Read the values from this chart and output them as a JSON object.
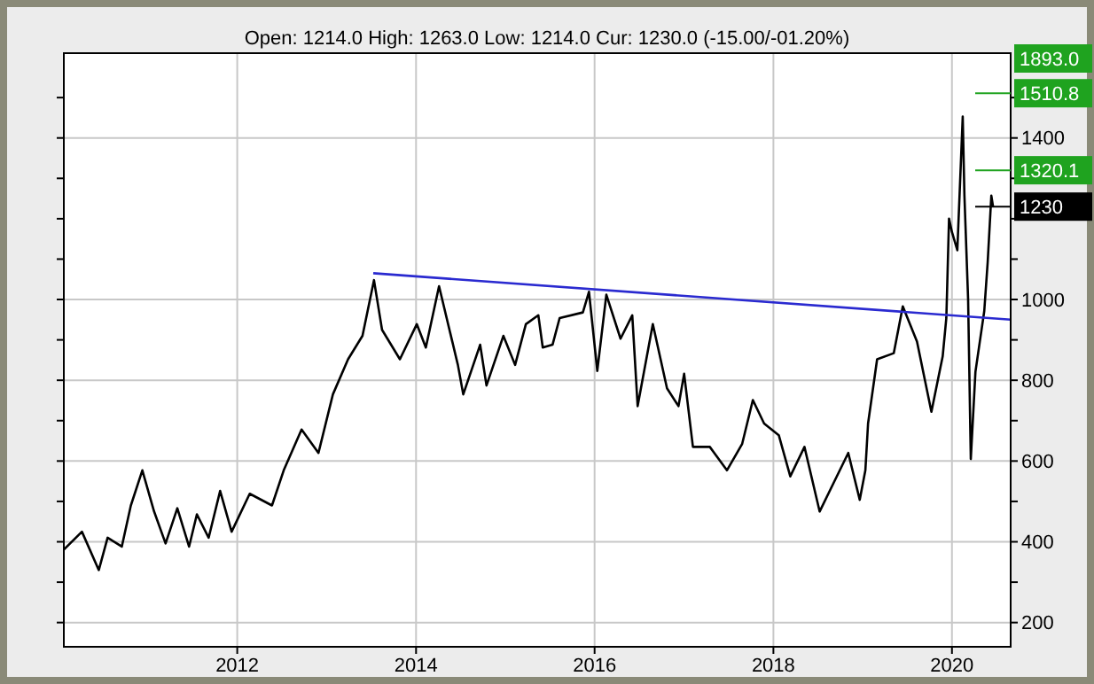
{
  "chart_data": {
    "type": "line",
    "subtitle": "Open: 1214.0 High: 1263.0 Low: 1214.0 Cur: 1230.0 (-15.00/-01.20%)",
    "annotations": [
      "1893.0"
    ],
    "xlim": [
      "2010-01-22",
      "2020-08-28"
    ],
    "xticks": [
      "2012",
      "2014",
      "2016",
      "2018",
      "2020"
    ],
    "ylim": [
      140,
      1610
    ],
    "yticks": [
      200,
      {
        "value": 300,
        "label": null
      },
      400,
      {
        "value": 500,
        "label": null
      },
      600,
      {
        "value": 700,
        "label": null
      },
      800,
      {
        "value": 900,
        "label": null
      },
      1000,
      {
        "value": 1100,
        "label": null
      },
      {
        "value": 1200,
        "label": null
      },
      {
        "value": 1300,
        "label": null
      },
      1400,
      {
        "value": 1500,
        "label": null
      }
    ],
    "grid": true,
    "marker": "none",
    "line_style": "solid",
    "ref_lines": [
      {
        "axis": "y",
        "value": 1510.8,
        "label": "1510.8",
        "color": "#1fa31f"
      },
      {
        "axis": "y",
        "value": 1320.1,
        "label": "1320.1",
        "color": "#1fa31f"
      },
      {
        "axis": "y",
        "value": 1230,
        "label": "1230",
        "color": "#000000"
      }
    ],
    "series": [
      {
        "color": "#000000",
        "x": [
          "2010-01-23",
          "2010-04-06",
          "2010-06-14",
          "2010-07-20",
          "2010-09-16",
          "2010-10-23",
          "2010-12-09",
          "2011-01-26",
          "2011-03-14",
          "2011-05-01",
          "2011-06-18",
          "2011-07-20",
          "2011-09-06",
          "2011-10-23",
          "2011-12-09",
          "2012-02-21",
          "2012-05-22",
          "2012-07-09",
          "2012-09-20",
          "2012-11-28",
          "2013-01-26",
          "2013-03-29",
          "2013-05-27",
          "2013-07-13",
          "2013-08-15",
          "2013-10-27",
          "2014-01-04",
          "2014-02-10",
          "2014-04-05",
          "2014-06-21",
          "2014-07-13",
          "2014-09-20",
          "2014-10-16",
          "2014-12-24",
          "2015-02-10",
          "2015-03-26",
          "2015-05-16",
          "2015-06-03",
          "2015-07-13",
          "2015-08-11",
          "2015-11-14",
          "2015-12-09",
          "2016-01-12",
          "2016-02-18",
          "2016-04-16",
          "2016-06-03",
          "2016-06-25",
          "2016-08-26",
          "2016-10-23",
          "2016-12-09",
          "2017-01-01",
          "2017-02-06",
          "2017-04-16",
          "2017-06-25",
          "2017-08-26",
          "2017-10-09",
          "2017-11-24",
          "2018-01-23",
          "2018-03-11",
          "2018-05-08",
          "2018-07-09",
          "2018-09-06",
          "2018-11-03",
          "2018-12-20",
          "2019-01-12",
          "2019-01-23",
          "2019-03-01",
          "2019-05-08",
          "2019-06-14",
          "2019-08-11",
          "2019-10-09",
          "2019-11-24",
          "2019-12-09",
          "2019-12-20",
          "2020-01-01",
          "2020-01-23",
          "2020-02-14",
          "2020-02-21",
          "2020-03-07",
          "2020-03-18",
          "2020-04-06",
          "2020-04-24",
          "2020-05-12",
          "2020-05-26",
          "2020-06-10",
          "2020-06-17"
        ],
        "values": [
          381,
          425,
          330,
          410,
          388,
          490,
          577,
          475,
          396,
          483,
          388,
          468,
          410,
          526,
          425,
          519,
          490,
          577,
          678,
          620,
          765,
          852,
          910,
          1048,
          925,
          852,
          939,
          881,
          1033,
          838,
          765,
          888,
          787,
          910,
          838,
          939,
          961,
          881,
          888,
          954,
          968,
          1019,
          823,
          1012,
          903,
          961,
          736,
          939,
          780,
          736,
          816,
          635,
          635,
          577,
          642,
          751,
          693,
          664,
          562,
          635,
          475,
          548,
          620,
          504,
          577,
          693,
          852,
          867,
          983,
          896,
          722,
          859,
          954,
          1200,
          1167,
          1122,
          1453,
          1257,
          1001,
          605,
          821,
          896,
          971,
          1092,
          1257,
          1230
        ]
      },
      {
        "color": "#2a2ad0",
        "x": [
          "2013-07-10",
          "2020-08-28"
        ],
        "values": [
          1065,
          950
        ]
      }
    ]
  }
}
